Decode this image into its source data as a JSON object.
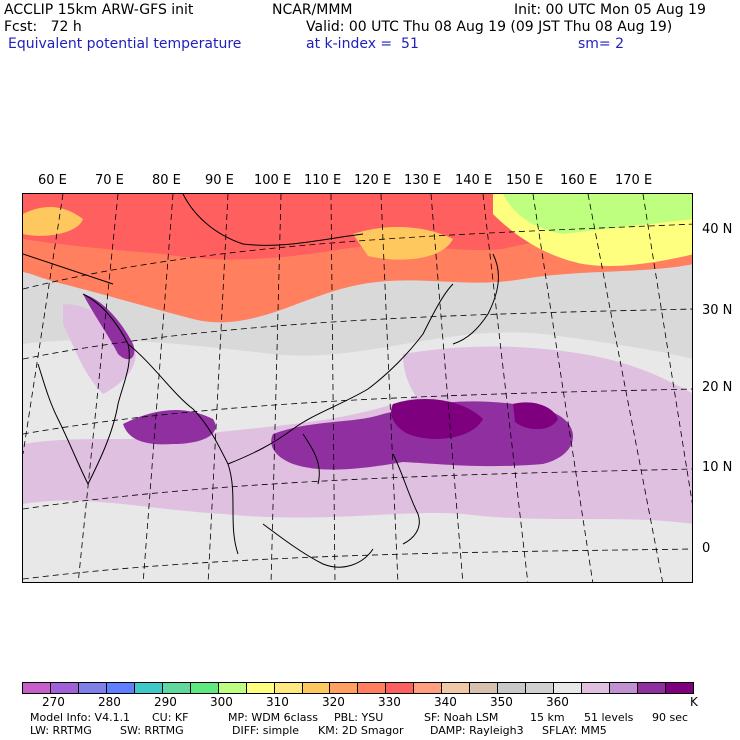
{
  "header": {
    "model": "ACCLIP 15km ARW-GFS init",
    "org": "NCAR/MMM",
    "init": "Init: 00 UTC Mon 05 Aug 19",
    "fcst": "Fcst:   72 h",
    "valid": "Valid: 00 UTC Thu 08 Aug 19 (09 JST Thu 08 Aug 19)",
    "field": "Equivalent potential temperature",
    "level": "at k-index =  51",
    "smooth": "sm= 2"
  },
  "map": {
    "lon_labels": [
      "60 E",
      "70 E",
      "80 E",
      "90 E",
      "100 E",
      "110 E",
      "120 E",
      "130 E",
      "140 E",
      "150 E",
      "160 E",
      "170 E"
    ],
    "lat_labels": [
      "40 N",
      "30 N",
      "20 N",
      "10 N",
      "0"
    ]
  },
  "colorbar": {
    "colors": [
      "#c85fc8",
      "#a15fd8",
      "#7f7fe8",
      "#5f7fff",
      "#3fc8c8",
      "#5fd89f",
      "#5fe87f",
      "#bfff7f",
      "#ffff7f",
      "#ffe87f",
      "#ffc85f",
      "#ffa05f",
      "#ff7f5f",
      "#ff5f5f",
      "#ff9f7f",
      "#f0c8a8",
      "#d8c0b0",
      "#c8c8c8",
      "#d0d0d0",
      "#e8e8e8",
      "#e0c0e0",
      "#c090d0",
      "#9030a0",
      "#7f007f"
    ],
    "labels": [
      "270",
      "280",
      "290",
      "300",
      "310",
      "320",
      "330",
      "340",
      "350",
      "360"
    ],
    "unit": "K"
  },
  "footer": {
    "line1": [
      {
        "text": "Model Info: V4.1.1"
      },
      {
        "text": "CU: KF"
      },
      {
        "text": "MP: WDM 6class"
      },
      {
        "text": "PBL: YSU"
      },
      {
        "text": "SF: Noah LSM"
      },
      {
        "text": "15 km"
      },
      {
        "text": "51 levels"
      },
      {
        "text": "90 sec"
      }
    ],
    "line2": [
      {
        "text": "LW: RRTMG"
      },
      {
        "text": "SW: RRTMG"
      },
      {
        "text": "DIFF: simple"
      },
      {
        "text": "KM: 2D Smagor"
      },
      {
        "text": "DAMP: Rayleigh3"
      },
      {
        "text": "SFLAY: MM5"
      }
    ]
  }
}
